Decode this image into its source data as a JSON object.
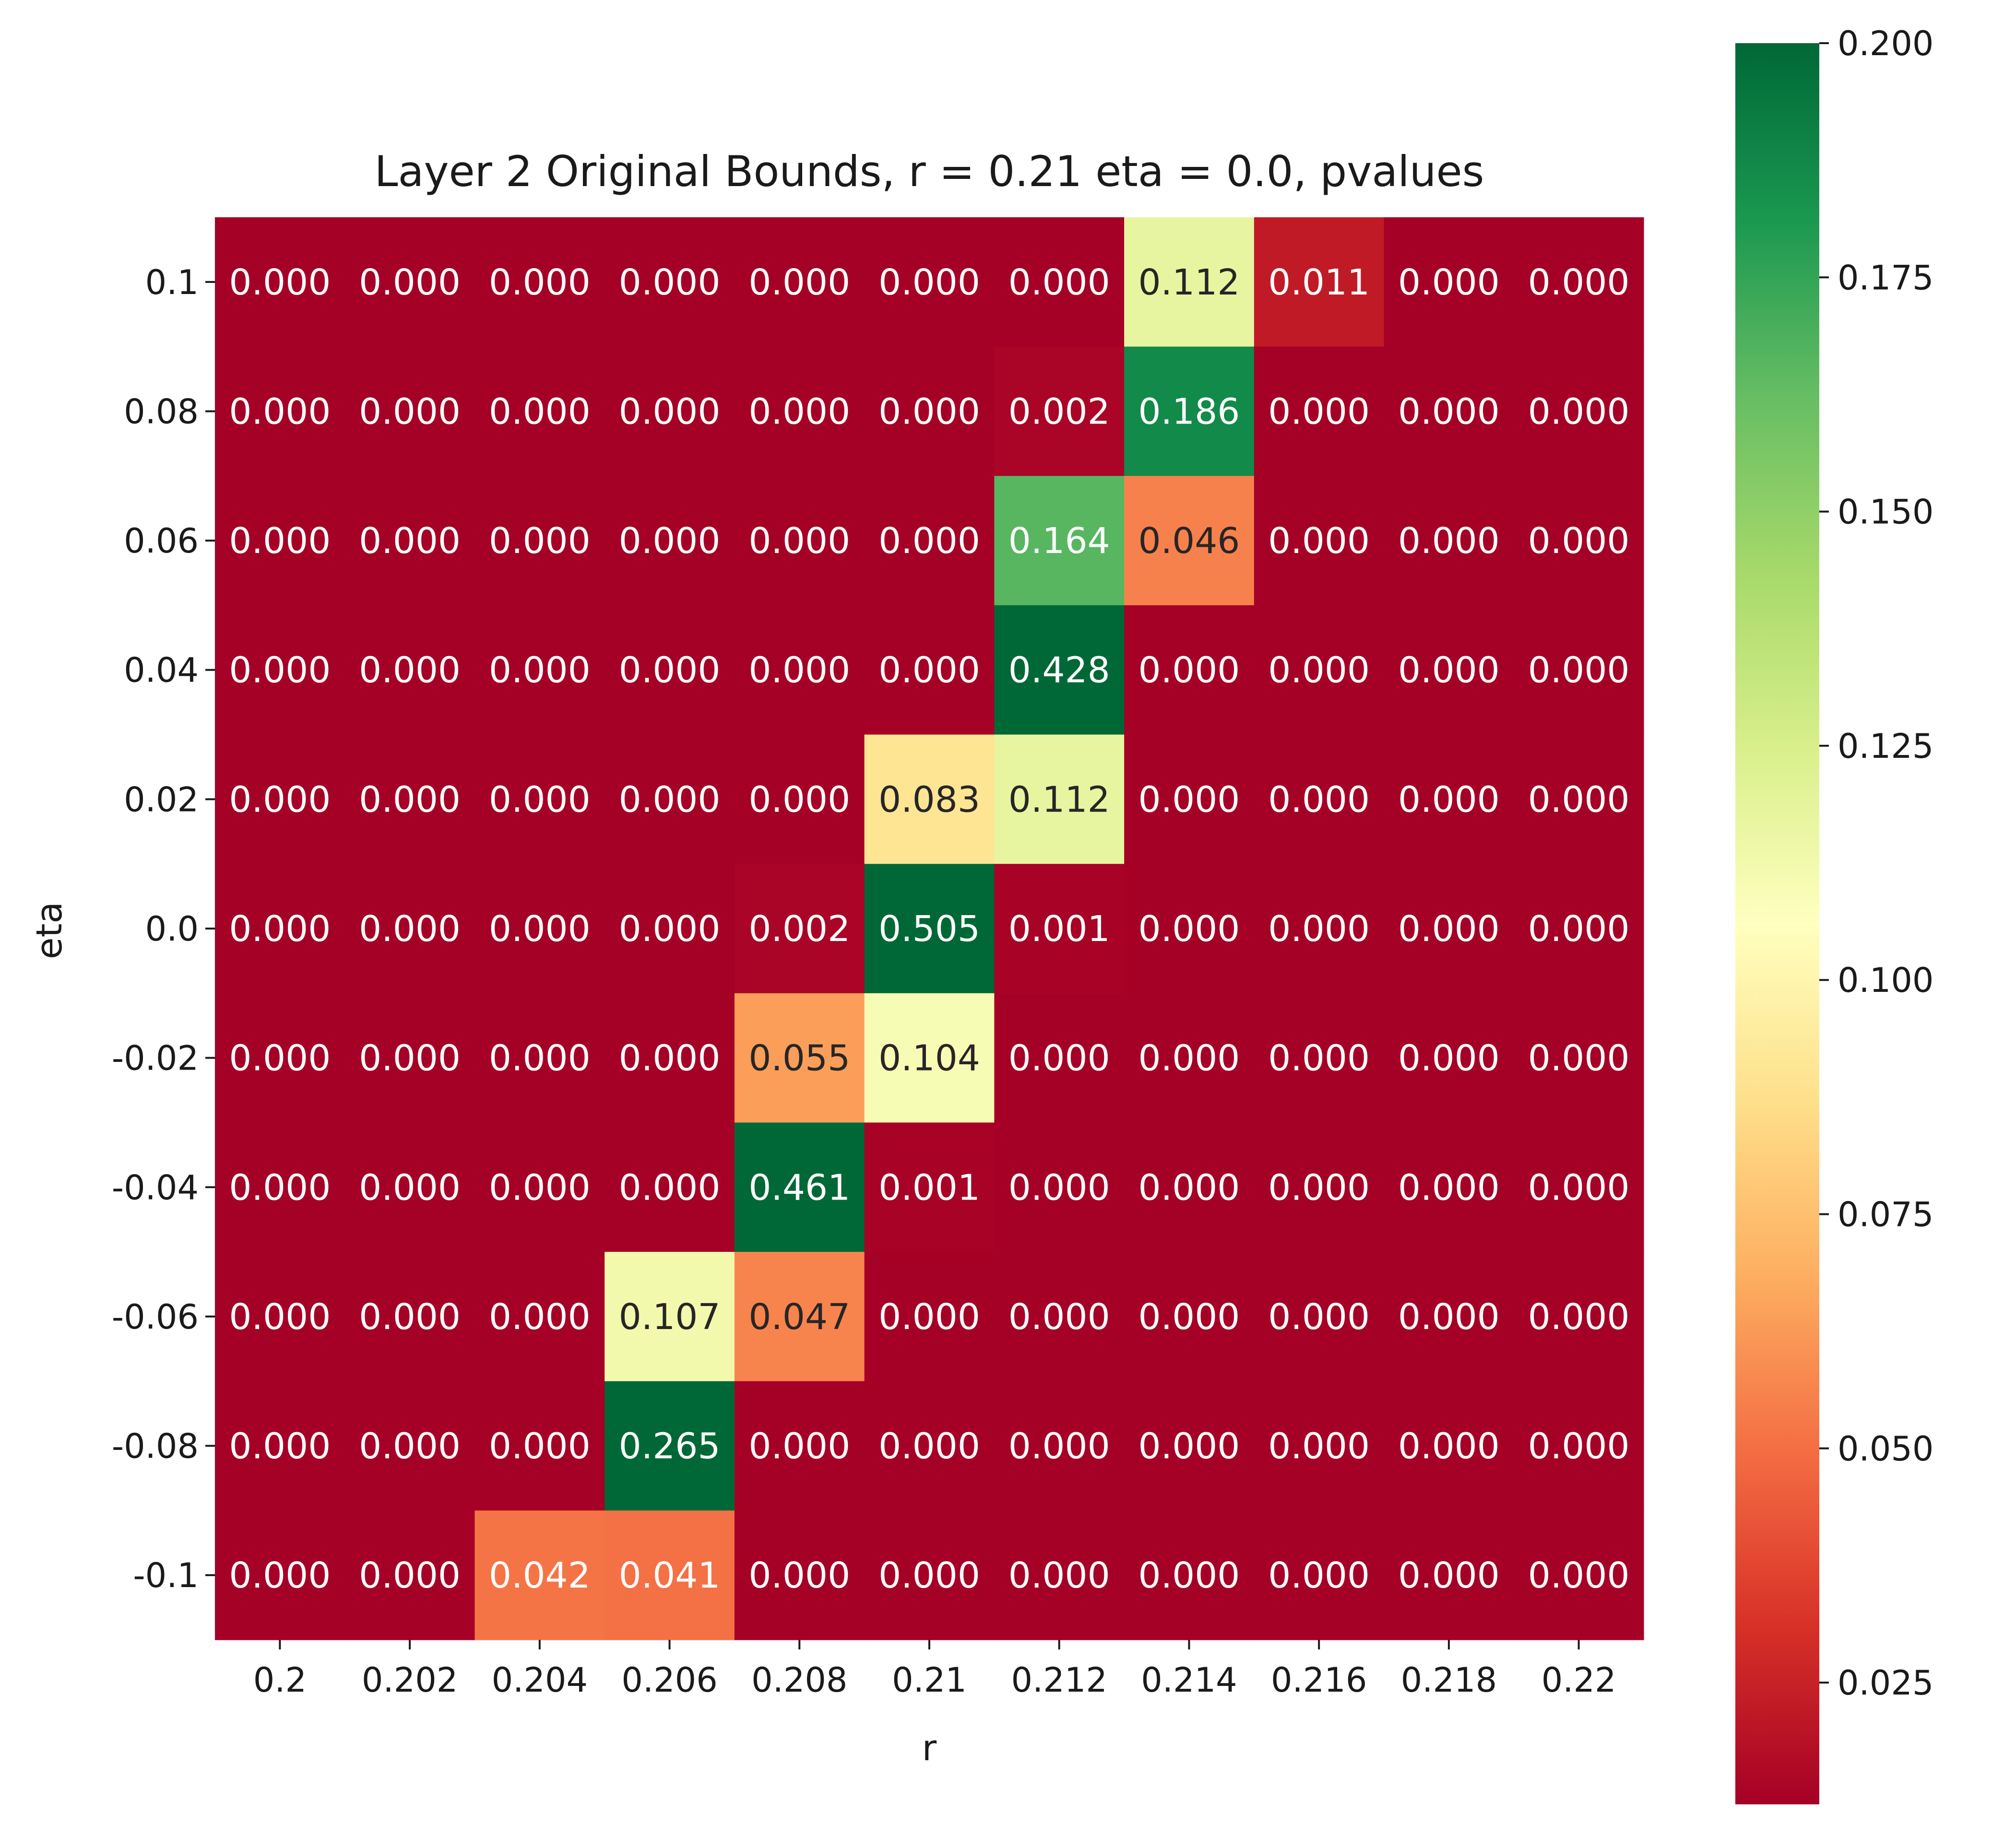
{
  "chart_data": {
    "type": "heatmap",
    "title": "Layer 2 Original Bounds, r = 0.21 eta = 0.0, pvalues",
    "xlabel": "r",
    "ylabel": "eta",
    "x_categories": [
      "0.2",
      "0.202",
      "0.204",
      "0.206",
      "0.208",
      "0.21",
      "0.212",
      "0.214",
      "0.216",
      "0.218",
      "0.22"
    ],
    "y_categories": [
      "0.1",
      "0.08",
      "0.06",
      "0.04",
      "0.02",
      "0.0",
      "-0.02",
      "-0.04",
      "-0.06",
      "-0.08",
      "-0.1"
    ],
    "values": [
      [
        0.0,
        0.0,
        0.0,
        0.0,
        0.0,
        0.0,
        0.0,
        0.112,
        0.011,
        0.0,
        0.0
      ],
      [
        0.0,
        0.0,
        0.0,
        0.0,
        0.0,
        0.0,
        0.002,
        0.186,
        0.0,
        0.0,
        0.0
      ],
      [
        0.0,
        0.0,
        0.0,
        0.0,
        0.0,
        0.0,
        0.164,
        0.046,
        0.0,
        0.0,
        0.0
      ],
      [
        0.0,
        0.0,
        0.0,
        0.0,
        0.0,
        0.0,
        0.428,
        0.0,
        0.0,
        0.0,
        0.0
      ],
      [
        0.0,
        0.0,
        0.0,
        0.0,
        0.0,
        0.083,
        0.112,
        0.0,
        0.0,
        0.0,
        0.0
      ],
      [
        0.0,
        0.0,
        0.0,
        0.0,
        0.002,
        0.505,
        0.001,
        0.0,
        0.0,
        0.0,
        0.0
      ],
      [
        0.0,
        0.0,
        0.0,
        0.0,
        0.055,
        0.104,
        0.0,
        0.0,
        0.0,
        0.0,
        0.0
      ],
      [
        0.0,
        0.0,
        0.0,
        0.0,
        0.461,
        0.001,
        0.0,
        0.0,
        0.0,
        0.0,
        0.0
      ],
      [
        0.0,
        0.0,
        0.0,
        0.107,
        0.047,
        0.0,
        0.0,
        0.0,
        0.0,
        0.0,
        0.0
      ],
      [
        0.0,
        0.0,
        0.0,
        0.265,
        0.0,
        0.0,
        0.0,
        0.0,
        0.0,
        0.0,
        0.0
      ],
      [
        0.0,
        0.0,
        0.042,
        0.041,
        0.0,
        0.0,
        0.0,
        0.0,
        0.0,
        0.0,
        0.0
      ]
    ],
    "annotation_format": "3 decimals",
    "colormap": "RdYlGn",
    "color_range": [
      0.0,
      0.2
    ],
    "colorbar": {
      "ticks": [
        "0.025",
        "0.050",
        "0.075",
        "0.100",
        "0.125",
        "0.150",
        "0.175",
        "0.200"
      ],
      "position": "right"
    },
    "grid": false,
    "legend": "none"
  }
}
